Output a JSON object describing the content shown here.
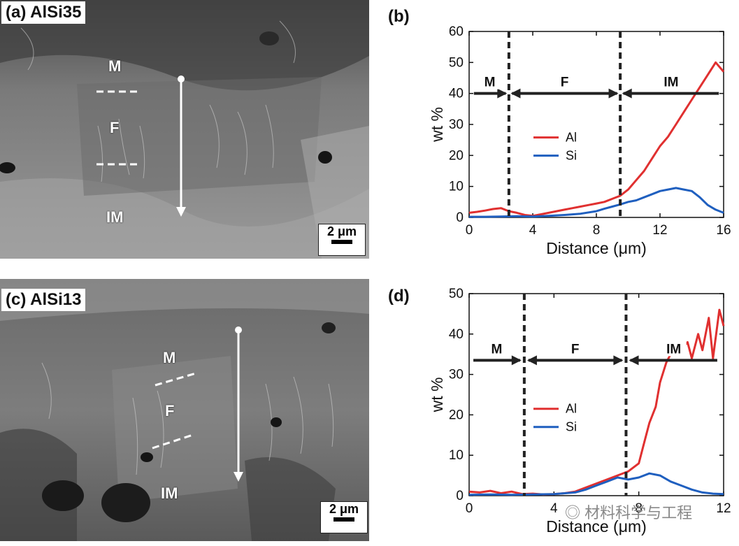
{
  "panels": {
    "a": {
      "label": "(a) AlSi35",
      "regions": [
        "M",
        "F",
        "IM"
      ],
      "scale": "2 μm"
    },
    "c": {
      "label": "(c) AlSi13",
      "regions": [
        "M",
        "F",
        "IM"
      ],
      "scale": "2 μm"
    },
    "b": {
      "label": "(b)"
    },
    "d": {
      "label": "(d)"
    }
  },
  "colors": {
    "al": "#e03030",
    "si": "#1f5fbf",
    "divider": "#222222"
  },
  "watermark": "材料科学与工程",
  "chart_data": [
    {
      "type": "line",
      "panel": "b",
      "xlabel": "Distance (μm)",
      "ylabel": "wt %",
      "xlim": [
        0,
        16
      ],
      "ylim": [
        0,
        60
      ],
      "xticks": [
        0,
        4,
        8,
        12,
        16
      ],
      "yticks": [
        0,
        10,
        20,
        30,
        40,
        50,
        60
      ],
      "legend_placement": "center-left",
      "dividers_x": [
        2.5,
        9.5
      ],
      "zone_arrows": {
        "y": 40,
        "zones": [
          {
            "label": "M",
            "from": 0.3,
            "to": 2.3
          },
          {
            "label": "F",
            "from": 2.7,
            "to": 9.3
          },
          {
            "label": "IM",
            "from": 9.7,
            "to": 15.7
          }
        ]
      },
      "series": [
        {
          "name": "Al",
          "color": "#e03030",
          "x": [
            0,
            0.5,
            1,
            1.5,
            2,
            2.5,
            3,
            3.5,
            4,
            4.5,
            5,
            5.5,
            6,
            6.5,
            7,
            7.5,
            8,
            8.5,
            9,
            9.5,
            10,
            10.5,
            11,
            11.5,
            12,
            12.5,
            13,
            13.5,
            14,
            14.5,
            15,
            15.5,
            16
          ],
          "y": [
            1.5,
            1.8,
            2.2,
            2.7,
            3,
            2,
            1.5,
            0.8,
            0.5,
            1,
            1.5,
            2,
            2.5,
            3,
            3.5,
            4,
            4.5,
            5,
            6,
            7,
            9,
            12,
            15,
            19,
            23,
            26,
            30,
            34,
            38,
            42,
            46,
            50,
            47
          ]
        },
        {
          "name": "Si",
          "color": "#1f5fbf",
          "x": [
            0,
            1,
            2,
            3,
            4,
            5,
            6,
            7,
            8,
            8.5,
            9,
            9.5,
            10,
            10.5,
            11,
            11.5,
            12,
            12.5,
            13,
            13.5,
            14,
            14.5,
            15,
            15.5,
            16
          ],
          "y": [
            0.2,
            0.2,
            0.3,
            0.4,
            0.3,
            0.5,
            0.8,
            1.2,
            2,
            2.8,
            3.5,
            4.2,
            5,
            5.5,
            6.5,
            7.5,
            8.5,
            9,
            9.5,
            9,
            8.5,
            6.5,
            4,
            2.5,
            1.5
          ]
        }
      ]
    },
    {
      "type": "line",
      "panel": "d",
      "xlabel": "Distance (μm)",
      "ylabel": "wt %",
      "xlim": [
        0,
        12
      ],
      "ylim": [
        0,
        50
      ],
      "xticks": [
        0,
        4,
        8,
        12
      ],
      "yticks": [
        0,
        10,
        20,
        30,
        40,
        50
      ],
      "legend_placement": "center-left",
      "dividers_x": [
        2.6,
        7.4
      ],
      "zone_arrows": {
        "y": 33.5,
        "zones": [
          {
            "label": "M",
            "from": 0.2,
            "to": 2.4
          },
          {
            "label": "F",
            "from": 2.8,
            "to": 7.2
          },
          {
            "label": "IM",
            "from": 7.6,
            "to": 11.7
          }
        ]
      },
      "series": [
        {
          "name": "Al",
          "color": "#e03030",
          "x": [
            0,
            0.5,
            1,
            1.5,
            2,
            2.5,
            3,
            3.5,
            4,
            4.5,
            5,
            5.5,
            6,
            6.5,
            7,
            7.5,
            8,
            8.2,
            8.5,
            8.8,
            9,
            9.3,
            9.5,
            9.8,
            10,
            10.3,
            10.5,
            10.8,
            11,
            11.3,
            11.5,
            11.8,
            12
          ],
          "y": [
            1,
            0.8,
            1.2,
            0.6,
            1,
            0.4,
            0.5,
            0.3,
            0.4,
            0.6,
            1,
            2,
            3,
            4,
            5,
            6,
            8,
            12,
            18,
            22,
            28,
            33,
            35,
            37,
            36,
            38,
            34,
            40,
            36,
            44,
            34,
            46,
            42
          ]
        },
        {
          "name": "Si",
          "color": "#1f5fbf",
          "x": [
            0,
            1,
            2,
            3,
            4,
            5,
            5.5,
            6,
            6.5,
            7,
            7.5,
            8,
            8.5,
            9,
            9.5,
            10,
            10.5,
            11,
            11.5,
            12
          ],
          "y": [
            0.2,
            0.3,
            0.2,
            0.3,
            0.4,
            0.8,
            1.5,
            2.5,
            3.5,
            4.5,
            4,
            4.5,
            5.5,
            5,
            3.5,
            2.5,
            1.5,
            0.8,
            0.5,
            0.4
          ]
        }
      ]
    }
  ]
}
